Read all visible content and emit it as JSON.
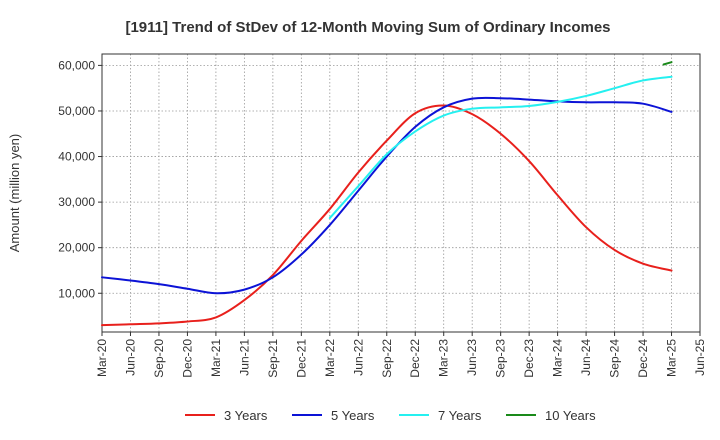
{
  "chart_data": {
    "type": "line",
    "title": "[1911]  Trend of StDev of 12-Month Moving Sum of Ordinary Incomes",
    "xlabel": "",
    "ylabel": "Amount (million yen)",
    "ylim": [
      1500,
      62500
    ],
    "yticks": [
      10000,
      20000,
      30000,
      40000,
      50000,
      60000
    ],
    "ytick_labels": [
      "10,000",
      "20,000",
      "30,000",
      "40,000",
      "50,000",
      "60,000"
    ],
    "categories": [
      "Mar-20",
      "Jun-20",
      "Sep-20",
      "Dec-20",
      "Mar-21",
      "Jun-21",
      "Sep-21",
      "Dec-21",
      "Mar-22",
      "Jun-22",
      "Sep-22",
      "Dec-22",
      "Mar-23",
      "Jun-23",
      "Sep-23",
      "Dec-23",
      "Mar-24",
      "Jun-24",
      "Sep-24",
      "Dec-24",
      "Mar-25",
      "Jun-25"
    ],
    "grid": true,
    "legend_position": "bottom",
    "series": [
      {
        "name": "3 Years",
        "color": "#e8201c",
        "values": [
          3000,
          3200,
          3400,
          3800,
          4700,
          8500,
          14000,
          21500,
          28500,
          36500,
          43500,
          49500,
          51200,
          49300,
          45000,
          39000,
          31500,
          24500,
          19500,
          16500,
          15000,
          null
        ]
      },
      {
        "name": "5 Years",
        "color": "#0c13d6",
        "values": [
          13500,
          12800,
          12000,
          11000,
          10000,
          10800,
          13500,
          18500,
          25000,
          32500,
          40000,
          46500,
          50800,
          52700,
          52800,
          52500,
          52100,
          51900,
          51900,
          51600,
          49800,
          null
        ]
      },
      {
        "name": "7 Years",
        "color": "#25f0f0",
        "values": [
          null,
          null,
          null,
          null,
          null,
          null,
          null,
          null,
          26500,
          33500,
          40500,
          45500,
          49000,
          50500,
          50800,
          51100,
          52000,
          53300,
          55000,
          56700,
          57500,
          null
        ]
      },
      {
        "name": "10 Years",
        "color": "#1a8a1a",
        "values": [
          null,
          null,
          null,
          null,
          null,
          null,
          null,
          null,
          null,
          null,
          null,
          null,
          null,
          null,
          null,
          null,
          null,
          null,
          null,
          null,
          60700,
          null
        ],
        "partial_start": 60200
      }
    ]
  }
}
